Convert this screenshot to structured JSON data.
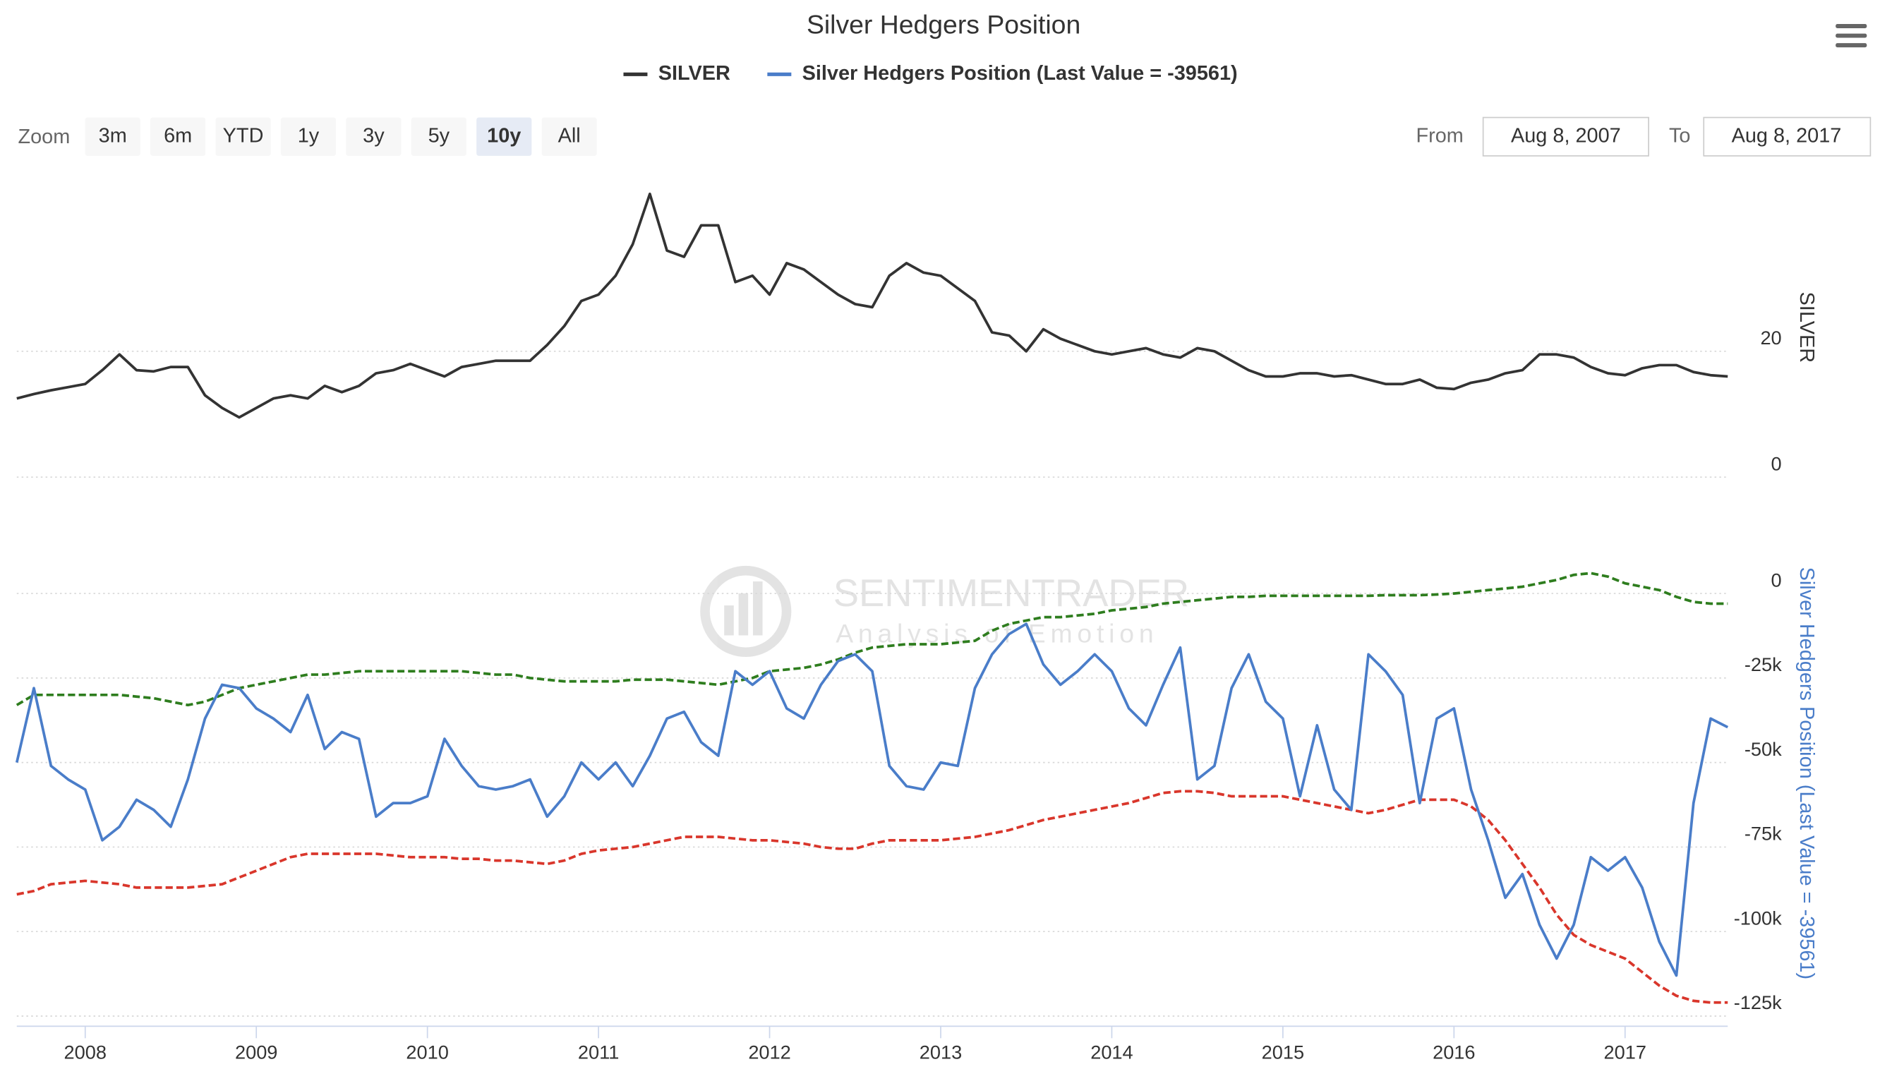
{
  "title": "Silver Hedgers Position",
  "zoom": {
    "label": "Zoom",
    "buttons": [
      "3m",
      "6m",
      "YTD",
      "1y",
      "3y",
      "5y",
      "10y",
      "All"
    ],
    "selected": "10y"
  },
  "range": {
    "from_label": "From",
    "from": "Aug 8, 2007",
    "to_label": "To",
    "to": "Aug 8, 2017"
  },
  "watermark": {
    "title": "SENTIMENTRADER",
    "subtitle": "Analysis of Emotion"
  },
  "chart_data": {
    "type": "line",
    "xlim": [
      2007.6,
      2017.6
    ],
    "xticks": [
      2008,
      2009,
      2010,
      2011,
      2012,
      2013,
      2014,
      2015,
      2016,
      2017
    ],
    "x": [
      2007.6,
      2007.7,
      2007.8,
      2007.9,
      2008.0,
      2008.1,
      2008.2,
      2008.3,
      2008.4,
      2008.5,
      2008.6,
      2008.7,
      2008.8,
      2008.9,
      2009.0,
      2009.1,
      2009.2,
      2009.3,
      2009.4,
      2009.5,
      2009.6,
      2009.7,
      2009.8,
      2009.9,
      2010.0,
      2010.1,
      2010.2,
      2010.3,
      2010.4,
      2010.5,
      2010.6,
      2010.7,
      2010.8,
      2010.9,
      2011.0,
      2011.1,
      2011.2,
      2011.3,
      2011.4,
      2011.5,
      2011.6,
      2011.7,
      2011.8,
      2011.9,
      2012.0,
      2012.1,
      2012.2,
      2012.3,
      2012.4,
      2012.5,
      2012.6,
      2012.7,
      2012.8,
      2012.9,
      2013.0,
      2013.1,
      2013.2,
      2013.3,
      2013.4,
      2013.5,
      2013.6,
      2013.7,
      2013.8,
      2013.9,
      2014.0,
      2014.1,
      2014.2,
      2014.3,
      2014.4,
      2014.5,
      2014.6,
      2014.7,
      2014.8,
      2014.9,
      2015.0,
      2015.1,
      2015.2,
      2015.3,
      2015.4,
      2015.5,
      2015.6,
      2015.7,
      2015.8,
      2015.9,
      2016.0,
      2016.1,
      2016.2,
      2016.3,
      2016.4,
      2016.5,
      2016.6,
      2016.7,
      2016.8,
      2016.9,
      2017.0,
      2017.1,
      2017.2,
      2017.3,
      2017.4,
      2017.5,
      2017.6
    ],
    "grid": true,
    "panels": [
      {
        "ylabel": "SILVER",
        "ylim": [
          0,
          45
        ],
        "yticks": [
          0,
          20
        ],
        "series": [
          {
            "name": "SILVER",
            "color": "#333333",
            "values": [
              12.5,
              13.2,
              13.8,
              14.3,
              14.8,
              17,
              19.5,
              17,
              16.8,
              17.5,
              17.5,
              13,
              11,
              9.5,
              11,
              12.5,
              13,
              12.5,
              14.5,
              13.5,
              14.5,
              16.5,
              17,
              18,
              17,
              16,
              17.5,
              18,
              18.5,
              18.5,
              18.5,
              21,
              24,
              28,
              29,
              32,
              37,
              45,
              36,
              35,
              40,
              40,
              31,
              32,
              29,
              34,
              33,
              31,
              29,
              27.5,
              27,
              32,
              34,
              32.5,
              32,
              30,
              28,
              23,
              22.5,
              20,
              23.5,
              22,
              21,
              20,
              19.5,
              20,
              20.5,
              19.5,
              19,
              20.5,
              20,
              18.5,
              17,
              16,
              16,
              16.5,
              16.5,
              16,
              16.2,
              15.5,
              14.8,
              14.8,
              15.5,
              14.2,
              14,
              15,
              15.5,
              16.5,
              17,
              19.5,
              19.5,
              19,
              17.5,
              16.5,
              16.2,
              17.3,
              17.8,
              17.8,
              16.7,
              16.2,
              16
            ]
          }
        ]
      },
      {
        "ylim": [
          -128000,
          22000
        ],
        "yticks": [
          0,
          {
            "value": -25000,
            "label": "-25k"
          },
          {
            "value": -50000,
            "label": "-50k"
          },
          {
            "value": -75000,
            "label": "-75k"
          },
          {
            "value": -100000,
            "label": "-100k"
          },
          {
            "value": -125000,
            "label": "-125k"
          }
        ],
        "series": [
          {
            "name": "Silver Hedgers Position (Last Value = -39561)",
            "color": "#4a7dc9",
            "values": [
              -50000,
              -28000,
              -51000,
              -55000,
              -58000,
              -73000,
              -69000,
              -61000,
              -64000,
              -69000,
              -55000,
              -37000,
              -27000,
              -28000,
              -34000,
              -37000,
              -41000,
              -30000,
              -46000,
              -41000,
              -43000,
              -66000,
              -62000,
              -62000,
              -60000,
              -43000,
              -51000,
              -57000,
              -58000,
              -57000,
              -55000,
              -66000,
              -60000,
              -50000,
              -55000,
              -50000,
              -57000,
              -48000,
              -37000,
              -35000,
              -44000,
              -48000,
              -23000,
              -27000,
              -23000,
              -34000,
              -37000,
              -27000,
              -20000,
              -18000,
              -23000,
              -51000,
              -57000,
              -58000,
              -50000,
              -51000,
              -28000,
              -18000,
              -12000,
              -9000,
              -21000,
              -27000,
              -23000,
              -18000,
              -23000,
              -34000,
              -39000,
              -27000,
              -16000,
              -55000,
              -51000,
              -28000,
              -18000,
              -32000,
              -37000,
              -60000,
              -39000,
              -58000,
              -64000,
              -18000,
              -23000,
              -30000,
              -62000,
              -37000,
              -34000,
              -58000,
              -73000,
              -90000,
              -83000,
              -98000,
              -108000,
              -98000,
              -78000,
              -82000,
              -78000,
              -87000,
              -103000,
              -113000,
              -62000,
              -37000,
              -39561
            ]
          }
        ],
        "bands": [
          {
            "color": "#2e7d1e",
            "values": [
              -33000,
              -30000,
              -30000,
              -30000,
              -30000,
              -30000,
              -30000,
              -30500,
              -31000,
              -32000,
              -33000,
              -32000,
              -30000,
              -28000,
              -27000,
              -26000,
              -25000,
              -24000,
              -24000,
              -23500,
              -23000,
              -23000,
              -23000,
              -23000,
              -23000,
              -23000,
              -23000,
              -23500,
              -24000,
              -24000,
              -25000,
              -25500,
              -26000,
              -26000,
              -26000,
              -26000,
              -25500,
              -25500,
              -25500,
              -26000,
              -26500,
              -27000,
              -26000,
              -25000,
              -23000,
              -22500,
              -22000,
              -21000,
              -19500,
              -17500,
              -16000,
              -15500,
              -15000,
              -15000,
              -15000,
              -14500,
              -14000,
              -11000,
              -9000,
              -8000,
              -7000,
              -7000,
              -6500,
              -6000,
              -5000,
              -4500,
              -4000,
              -3000,
              -2500,
              -2000,
              -1500,
              -1000,
              -1000,
              -700,
              -700,
              -700,
              -700,
              -700,
              -700,
              -700,
              -500,
              -500,
              -500,
              -300,
              0,
              500,
              1000,
              1500,
              2000,
              3000,
              4000,
              5500,
              6000,
              5000,
              3000,
              2000,
              1000,
              -1000,
              -2500,
              -3000,
              -3000
            ]
          },
          {
            "color": "#d9362b",
            "values": [
              -89000,
              -88000,
              -86000,
              -85500,
              -85000,
              -85500,
              -86000,
              -87000,
              -87000,
              -87000,
              -87000,
              -86500,
              -86000,
              -84000,
              -82000,
              -80000,
              -78000,
              -77000,
              -77000,
              -77000,
              -77000,
              -77000,
              -77500,
              -78000,
              -78000,
              -78000,
              -78500,
              -78500,
              -79000,
              -79000,
              -79500,
              -80000,
              -79000,
              -77000,
              -76000,
              -75500,
              -75000,
              -74000,
              -73000,
              -72000,
              -72000,
              -72000,
              -72500,
              -73000,
              -73000,
              -73500,
              -74000,
              -75000,
              -75500,
              -75500,
              -74000,
              -73000,
              -73000,
              -73000,
              -73000,
              -72500,
              -72000,
              -71000,
              -70000,
              -68500,
              -67000,
              -66000,
              -65000,
              -64000,
              -63000,
              -62000,
              -60500,
              -59000,
              -58500,
              -58500,
              -59000,
              -60000,
              -60000,
              -60000,
              -60000,
              -61000,
              -62000,
              -63000,
              -64000,
              -65000,
              -64000,
              -62500,
              -61000,
              -61000,
              -61000,
              -63000,
              -67000,
              -73000,
              -80000,
              -87000,
              -95000,
              -101000,
              -104000,
              -106000,
              -108000,
              -112000,
              -116000,
              -119000,
              -120500,
              -121000,
              -121000
            ]
          }
        ]
      }
    ]
  }
}
